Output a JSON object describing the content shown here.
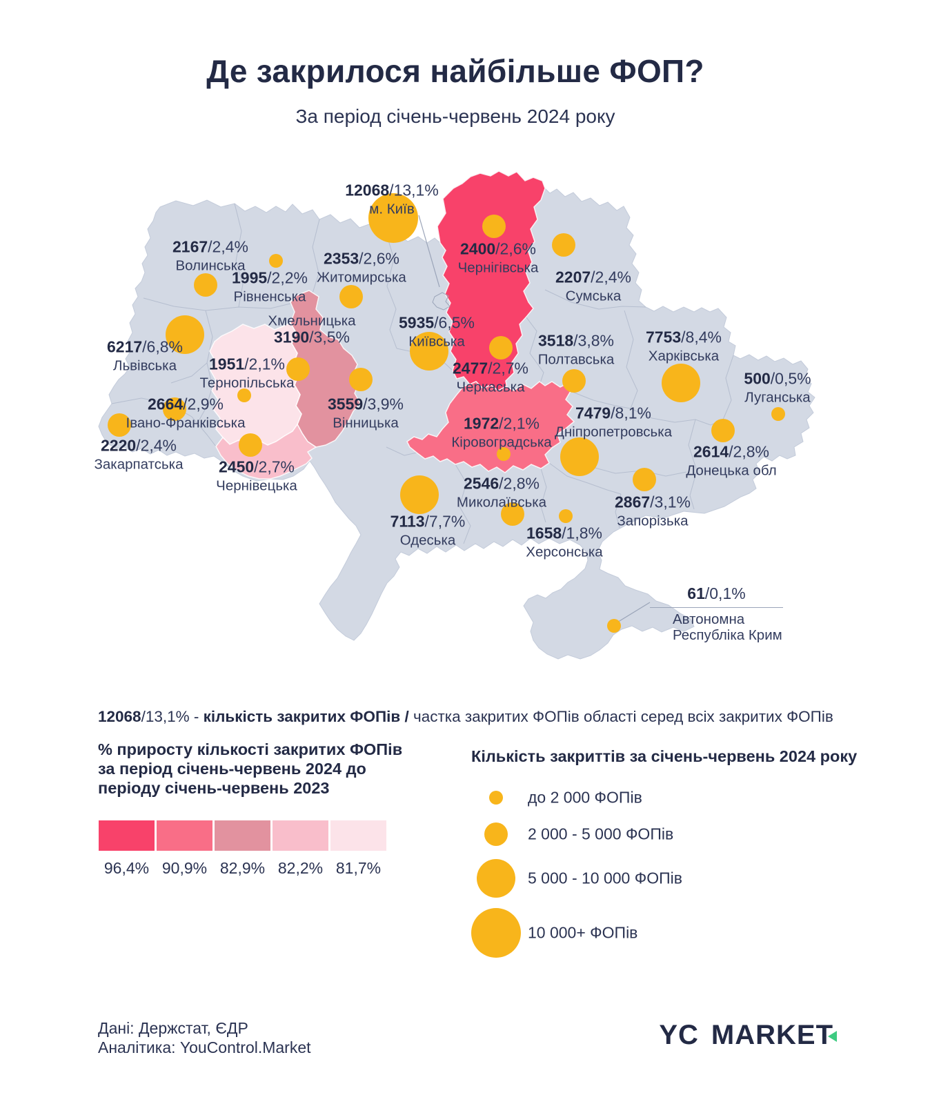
{
  "title": "Де закрилося найбільше ФОП?",
  "subtitle": "За період січень-червень 2024 року",
  "colors": {
    "map_fill": "#D3D9E4",
    "map_border": "#AEB7C9",
    "circle": "#F8B51B",
    "navy": "#232A45",
    "logo_green": "#3ECB82"
  },
  "chart_data": {
    "type": "map",
    "map_of": "Ukraine",
    "note": "proportional symbol + choropleth map: closed sole proprietors (ФОП) Jan-Jun 2024 by oblast",
    "regions": [
      {
        "id": "m-kyiv",
        "name": "м. Київ",
        "value": "12068",
        "share": "/13,1%",
        "closed": 12068,
        "share_pct": 13.1,
        "size_class": "xlarge",
        "growth_class": null
      },
      {
        "id": "chernihivska",
        "name": "Чернігівська",
        "value": "2400",
        "share": "/2,6%",
        "closed": 2400,
        "share_pct": 2.6,
        "size_class": "medium",
        "growth_class": 0
      },
      {
        "id": "sumska",
        "name": "Сумська",
        "value": "2207",
        "share": "/2,4%",
        "closed": 2207,
        "share_pct": 2.4,
        "size_class": "medium",
        "growth_class": null
      },
      {
        "id": "volynska",
        "name": "Волинська",
        "value": "2167",
        "share": "/2,4%",
        "closed": 2167,
        "share_pct": 2.4,
        "size_class": "medium",
        "growth_class": null
      },
      {
        "id": "rivnenska",
        "name": "Рівненська",
        "value": "1995",
        "share": "/2,2%",
        "closed": 1995,
        "share_pct": 2.2,
        "size_class": "small",
        "growth_class": null
      },
      {
        "id": "zhytomyrska",
        "name": "Житомирська",
        "value": "2353",
        "share": "/2,6%",
        "closed": 2353,
        "share_pct": 2.6,
        "size_class": "medium",
        "growth_class": null
      },
      {
        "id": "lvivska",
        "name": "Львівська",
        "value": "6217",
        "share": "/6,8%",
        "closed": 6217,
        "share_pct": 6.8,
        "size_class": "large",
        "growth_class": null
      },
      {
        "id": "khmelnytska",
        "name": "Хмельницька",
        "value": "3190",
        "share": "/3,5%",
        "closed": 3190,
        "share_pct": 3.5,
        "size_class": "medium",
        "growth_class": 2
      },
      {
        "id": "ternopilska",
        "name": "Тернопільська",
        "value": "1951",
        "share": "/2,1%",
        "closed": 1951,
        "share_pct": 2.1,
        "size_class": "small",
        "growth_class": 4
      },
      {
        "id": "kyivska",
        "name": "Київська",
        "value": "5935",
        "share": "/6,5%",
        "closed": 5935,
        "share_pct": 6.5,
        "size_class": "large",
        "growth_class": null
      },
      {
        "id": "cherkaska",
        "name": "Черкаська",
        "value": "2477",
        "share": "/2,7%",
        "closed": 2477,
        "share_pct": 2.7,
        "size_class": "medium",
        "growth_class": null
      },
      {
        "id": "poltavska",
        "name": "Полтавська",
        "value": "3518",
        "share": "/3,8%",
        "closed": 3518,
        "share_pct": 3.8,
        "size_class": "medium",
        "growth_class": null
      },
      {
        "id": "kharkivska",
        "name": "Харківська",
        "value": "7753",
        "share": "/8,4%",
        "closed": 7753,
        "share_pct": 8.4,
        "size_class": "large",
        "growth_class": null
      },
      {
        "id": "luhanska",
        "name": "Луганська",
        "value": "500",
        "share": "/0,5%",
        "closed": 500,
        "share_pct": 0.5,
        "size_class": "small",
        "growth_class": null
      },
      {
        "id": "vinnytska",
        "name": "Вінницька",
        "value": "3559",
        "share": "/3,9%",
        "closed": 3559,
        "share_pct": 3.9,
        "size_class": "medium",
        "growth_class": null
      },
      {
        "id": "kirovohradska",
        "name": "Кіровоградська",
        "value": "1972",
        "share": "/2,1%",
        "closed": 1972,
        "share_pct": 2.1,
        "size_class": "small",
        "growth_class": 1
      },
      {
        "id": "dnipropetrovska",
        "name": "Дніпропетровська",
        "value": "7479",
        "share": "/8,1%",
        "closed": 7479,
        "share_pct": 8.1,
        "size_class": "large",
        "growth_class": null
      },
      {
        "id": "donetska",
        "name": "Донецька обл",
        "value": "2614",
        "share": "/2,8%",
        "closed": 2614,
        "share_pct": 2.8,
        "size_class": "medium",
        "growth_class": null
      },
      {
        "id": "zaporizka",
        "name": "Запорізька",
        "value": "2867",
        "share": "/3,1%",
        "closed": 2867,
        "share_pct": 3.1,
        "size_class": "medium",
        "growth_class": null
      },
      {
        "id": "zakarpatska",
        "name": "Закарпатська",
        "value": "2220",
        "share": "/2,4%",
        "closed": 2220,
        "share_pct": 2.4,
        "size_class": "medium",
        "growth_class": null
      },
      {
        "id": "ivano-frankivska",
        "name": "Івано-Франківська",
        "value": "2664",
        "share": "/2,9%",
        "closed": 2664,
        "share_pct": 2.9,
        "size_class": "medium",
        "growth_class": null
      },
      {
        "id": "chernivetska",
        "name": "Чернівецька",
        "value": "2450",
        "share": "/2,7%",
        "closed": 2450,
        "share_pct": 2.7,
        "size_class": "medium",
        "growth_class": 3
      },
      {
        "id": "mykolaivska",
        "name": "Миколаївська",
        "value": "2546",
        "share": "/2,8%",
        "closed": 2546,
        "share_pct": 2.8,
        "size_class": "medium",
        "growth_class": null
      },
      {
        "id": "odeska",
        "name": "Одеська",
        "value": "7113",
        "share": "/7,7%",
        "closed": 7113,
        "share_pct": 7.7,
        "size_class": "large",
        "growth_class": null
      },
      {
        "id": "khersonska",
        "name": "Херсонська",
        "value": "1658",
        "share": "/1,8%",
        "closed": 1658,
        "share_pct": 1.8,
        "size_class": "small",
        "growth_class": null
      },
      {
        "id": "krym",
        "name": "Автономна\nРеспубліка Крим",
        "value": "61",
        "share": "/0,1%",
        "closed": 61,
        "share_pct": 0.1,
        "size_class": "small",
        "growth_class": null
      }
    ],
    "growth_scale": {
      "title": "% приросту кількості закритих ФОПів\nза період січень-червень 2024 до\nперіоду січень-червень 2023",
      "classes": [
        {
          "label": "96,4%",
          "color": "#F8426A"
        },
        {
          "label": "90,9%",
          "color": "#F96E87"
        },
        {
          "label": "82,9%",
          "color": "#E2929F"
        },
        {
          "label": "82,2%",
          "color": "#F9BECB"
        },
        {
          "label": "81,7%",
          "color": "#FCE3E9"
        }
      ]
    },
    "size_scale": {
      "title": "Кількість закриттів за січень-червень 2024 року",
      "classes": [
        {
          "id": "small",
          "label": "до 2 000 ФОПів"
        },
        {
          "id": "medium",
          "label": "2 000 - 5 000 ФОПів"
        },
        {
          "id": "large",
          "label": "5 000 - 10 000 ФОПів"
        },
        {
          "id": "xlarge",
          "label": "10 000+ ФОПів"
        }
      ]
    }
  },
  "explainer": {
    "parts": [
      {
        "text": "12068",
        "bold": true
      },
      {
        "text": "/13,1% - ",
        "bold": false
      },
      {
        "text": "кількість закритих ФОПів / ",
        "bold": true
      },
      {
        "text": "частка закритих ФОПів області серед всіх закритих ФОПів",
        "bold": false
      }
    ]
  },
  "footer": {
    "line1": "Дані: Держстат, ЄДР",
    "line2": "Аналітика: YouControl.Market",
    "logo_yc": "YC",
    "logo_market": "MARKET"
  }
}
